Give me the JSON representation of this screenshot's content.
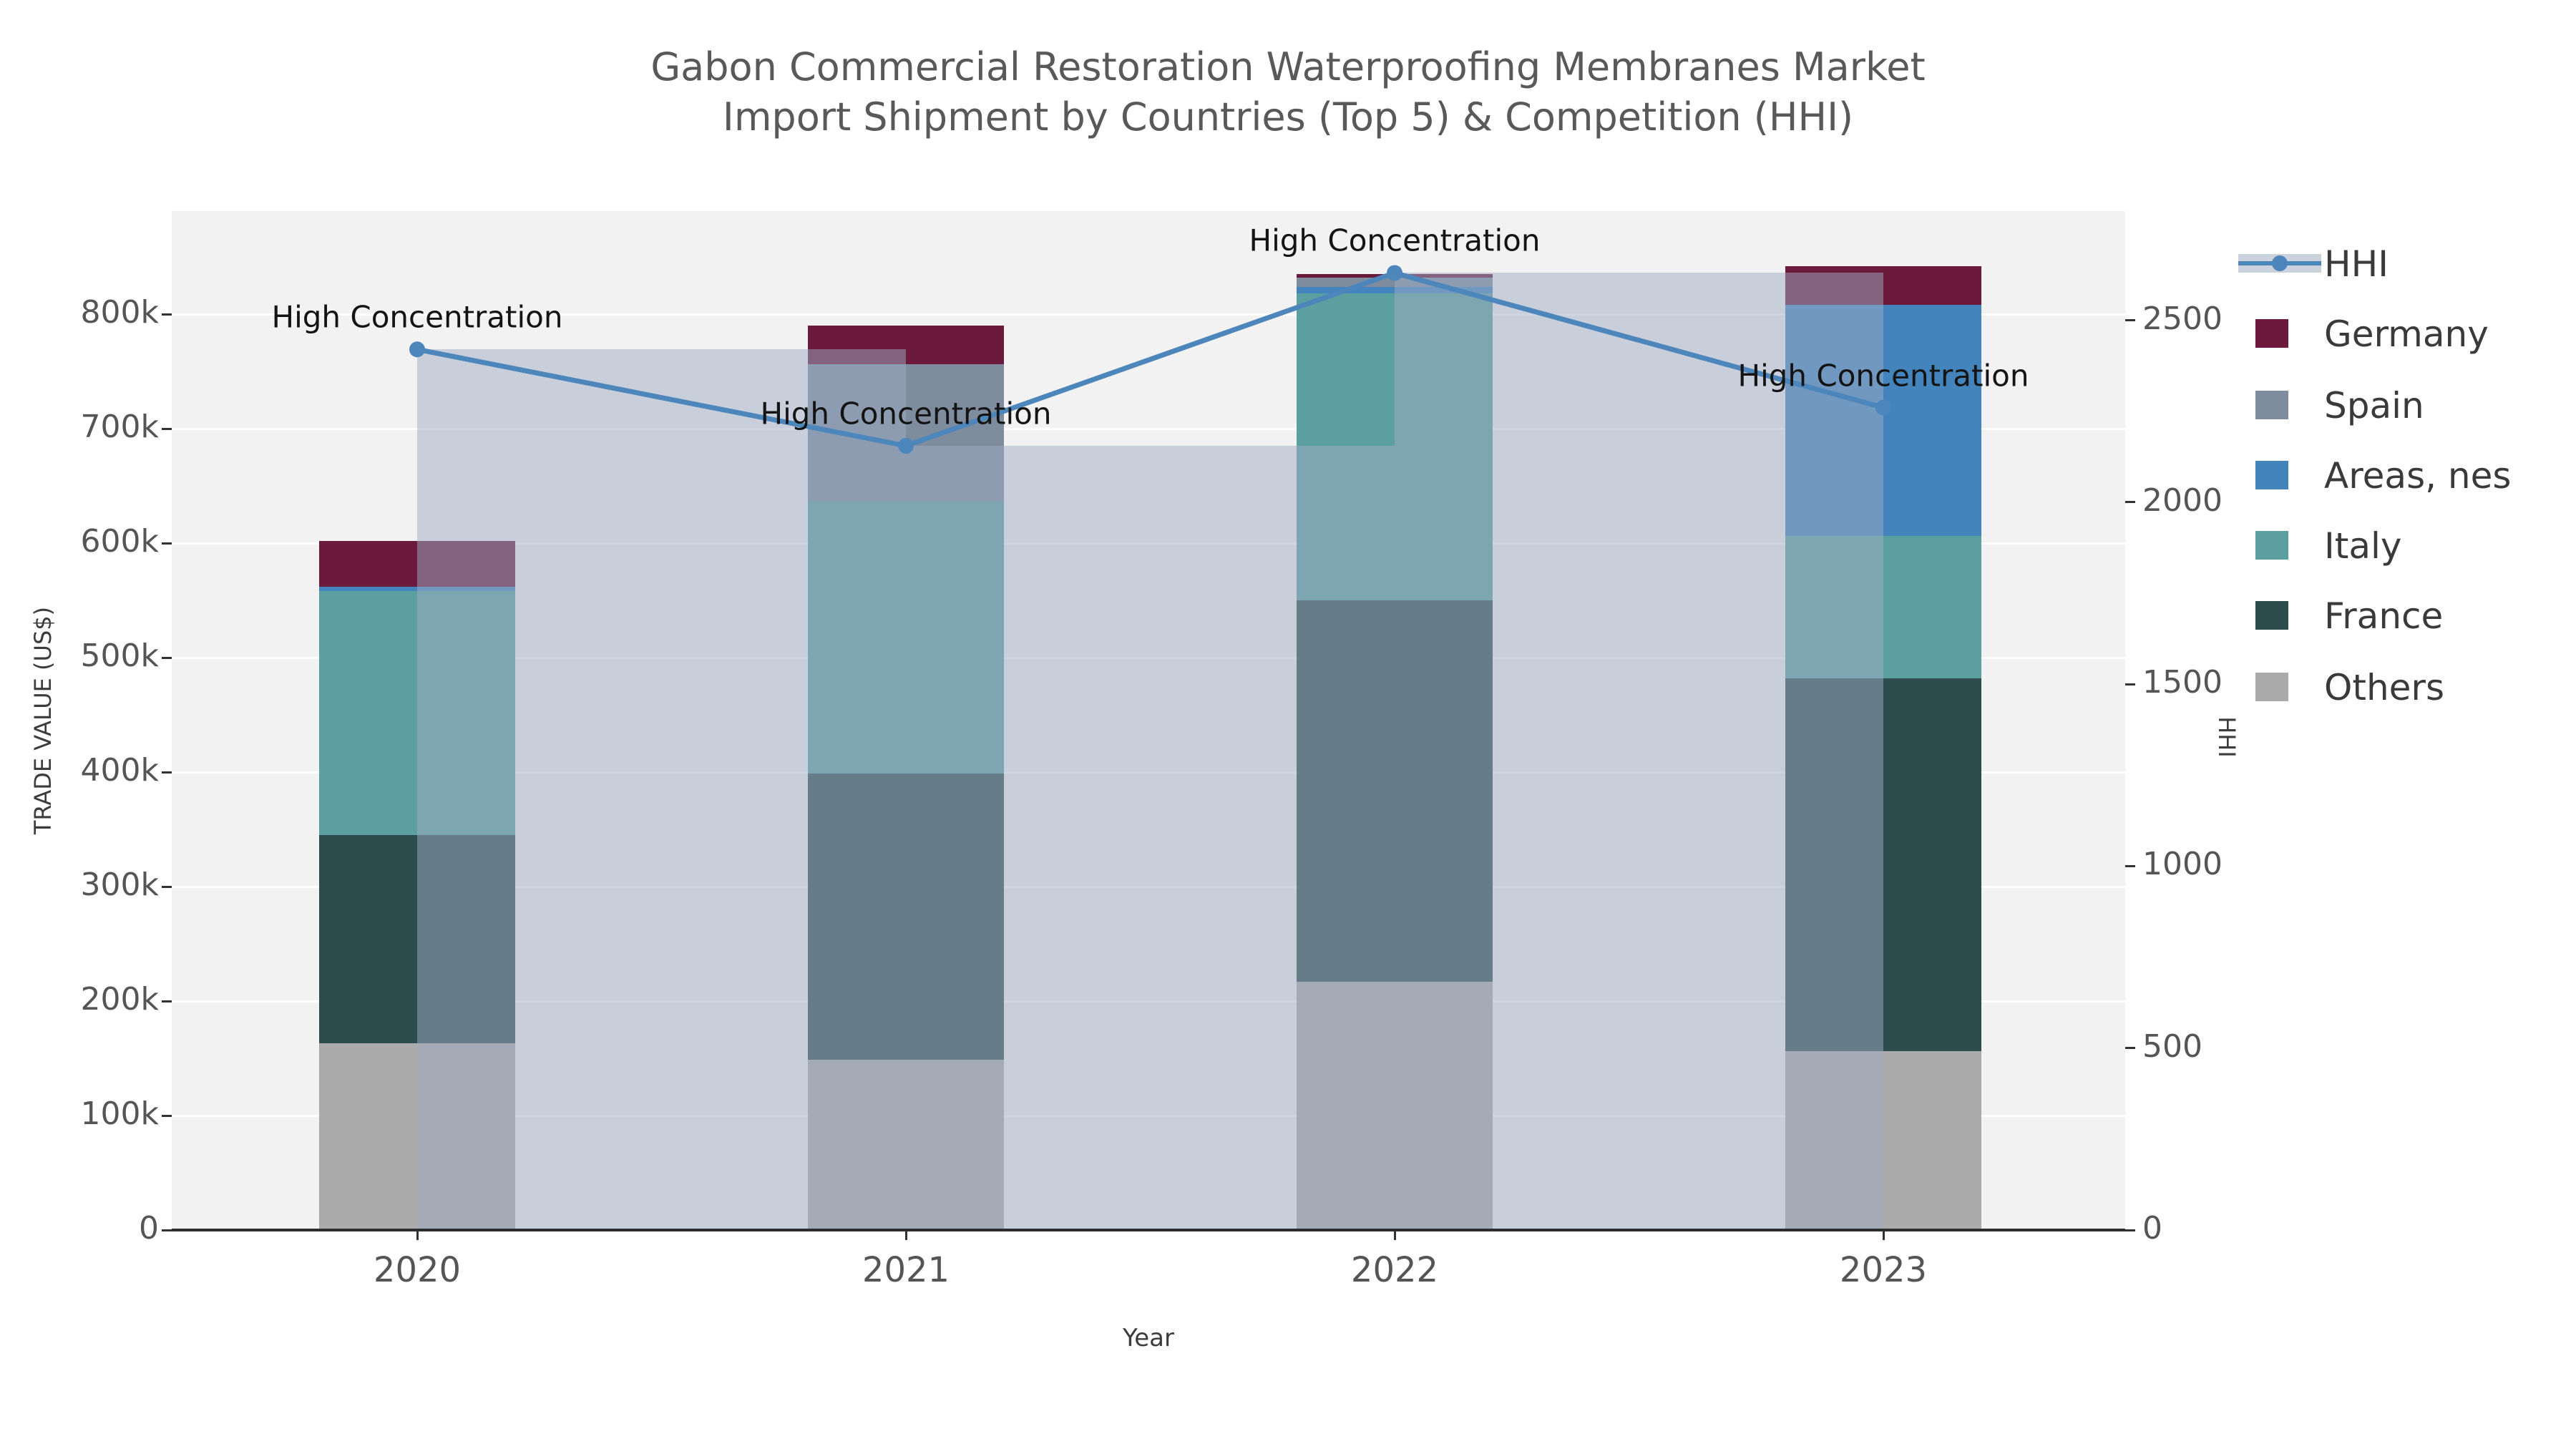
{
  "title": {
    "line1": "Gabon Commercial Restoration Waterproofing Membranes Market",
    "line2": "Import Shipment by Countries (Top 5) & Competition (HHI)"
  },
  "axes": {
    "x_label": "Year",
    "y_left_label": "TRADE VALUE (US$)",
    "y_right_label": "HHI",
    "left_max": 890000,
    "right_max": 2800,
    "left_ticks": [
      {
        "value": 0,
        "label": "0"
      },
      {
        "value": 100000,
        "label": "100k"
      },
      {
        "value": 200000,
        "label": "200k"
      },
      {
        "value": 300000,
        "label": "300k"
      },
      {
        "value": 400000,
        "label": "400k"
      },
      {
        "value": 500000,
        "label": "500k"
      },
      {
        "value": 600000,
        "label": "600k"
      },
      {
        "value": 700000,
        "label": "700k"
      },
      {
        "value": 800000,
        "label": "800k"
      }
    ],
    "right_ticks": [
      {
        "value": 0,
        "label": "0"
      },
      {
        "value": 500,
        "label": "500"
      },
      {
        "value": 1000,
        "label": "1000"
      },
      {
        "value": 1500,
        "label": "1500"
      },
      {
        "value": 2000,
        "label": "2000"
      },
      {
        "value": 2500,
        "label": "2500"
      }
    ]
  },
  "legend": {
    "items": [
      {
        "name": "HHI",
        "type": "line",
        "color": "#4c86bb",
        "band_color": "#ccd2dc"
      },
      {
        "name": "Germany",
        "type": "swatch",
        "color": "#6b1a3c"
      },
      {
        "name": "Spain",
        "type": "swatch",
        "color": "#7e8c9e"
      },
      {
        "name": "Areas, nes",
        "type": "swatch",
        "color": "#4484bd"
      },
      {
        "name": "Italy",
        "type": "swatch",
        "color": "#5c9fa1"
      },
      {
        "name": "France",
        "type": "swatch",
        "color": "#2e4c4d"
      },
      {
        "name": "Others",
        "type": "swatch",
        "color": "#ababab"
      }
    ]
  },
  "chart_data": {
    "type": "bar+line",
    "title": "Gabon Commercial Restoration Waterproofing Membranes Market — Import Shipment by Countries (Top 5) & Competition (HHI)",
    "xlabel": "Year",
    "ylabel_left": "TRADE VALUE (US$)",
    "ylabel_right": "HHI",
    "categories": [
      "2020",
      "2021",
      "2022",
      "2023"
    ],
    "ylim_left": [
      0,
      890000
    ],
    "ylim_right": [
      0,
      2800
    ],
    "grid": true,
    "legend_position": "right",
    "series": [
      {
        "name": "Others",
        "color": "#ababab",
        "values": [
          163000,
          149000,
          217000,
          156000
        ]
      },
      {
        "name": "France",
        "color": "#2e4c4d",
        "values": [
          182000,
          250000,
          333000,
          326000
        ]
      },
      {
        "name": "Italy",
        "color": "#5c9fa1",
        "values": [
          213000,
          238000,
          268000,
          124000
        ]
      },
      {
        "name": "Areas, nes",
        "color": "#4484bd",
        "values": [
          4000,
          0,
          6000,
          202000
        ]
      },
      {
        "name": "Spain",
        "color": "#7e8c9e",
        "values": [
          0,
          119000,
          8000,
          0
        ]
      },
      {
        "name": "Germany",
        "color": "#6b1a3c",
        "values": [
          40000,
          34000,
          3000,
          34000
        ]
      }
    ],
    "bar_totals": [
      602000,
      790000,
      835000,
      842000
    ],
    "hhi": {
      "name": "HHI",
      "values": [
        2420,
        2155,
        2630,
        2260
      ],
      "line_color": "#4c86bb",
      "fill_color": "rgba(158,172,196,0.5)",
      "fill_style": "step-post"
    },
    "annotations": [
      {
        "text": "High Concentration",
        "category": "2020"
      },
      {
        "text": "High Concentration",
        "category": "2021"
      },
      {
        "text": "High Concentration",
        "category": "2022"
      },
      {
        "text": "High Concentration",
        "category": "2023"
      }
    ]
  }
}
